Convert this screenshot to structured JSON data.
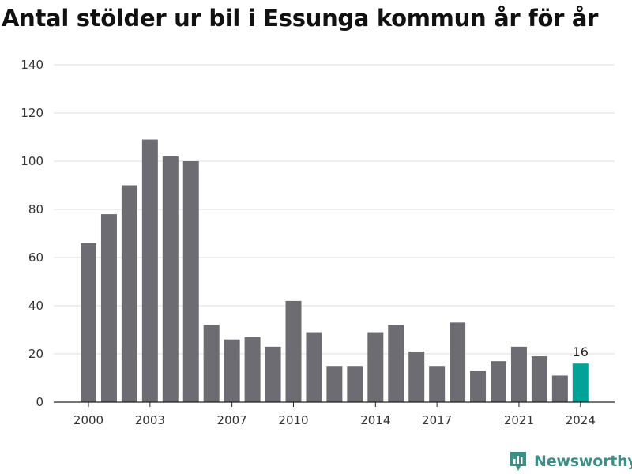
{
  "title": "Antal stölder ur bil i Essunga kommun år för år",
  "brand": {
    "name": "Newsworthy",
    "icon": "newsworthy-logo-icon",
    "color": "#3a8f87"
  },
  "colors": {
    "bar": "#6d6c72",
    "highlight": "#00a398",
    "grid": "#dcdcdc"
  },
  "chart_data": {
    "type": "bar",
    "title": "Antal stölder ur bil i Essunga kommun år för år",
    "xlabel": "",
    "ylabel": "",
    "ylim": [
      0,
      140
    ],
    "yticks": [
      0,
      20,
      40,
      60,
      80,
      100,
      120,
      140
    ],
    "xtick_labels": [
      "2000",
      "2003",
      "2007",
      "2010",
      "2014",
      "2017",
      "2021",
      "2024"
    ],
    "categories": [
      "2000",
      "2001",
      "2002",
      "2003",
      "2004",
      "2005",
      "2006",
      "2007",
      "2008",
      "2009",
      "2010",
      "2011",
      "2012",
      "2013",
      "2014",
      "2015",
      "2016",
      "2017",
      "2018",
      "2019",
      "2020",
      "2021",
      "2022",
      "2023",
      "2024"
    ],
    "values": [
      66,
      78,
      90,
      109,
      102,
      100,
      32,
      26,
      27,
      23,
      42,
      29,
      15,
      15,
      29,
      32,
      21,
      15,
      33,
      13,
      17,
      23,
      19,
      11,
      16
    ],
    "highlight_index": 24,
    "data_labels": [
      {
        "category": "2024",
        "text": "16"
      }
    ],
    "grid": true,
    "legend": "none"
  }
}
